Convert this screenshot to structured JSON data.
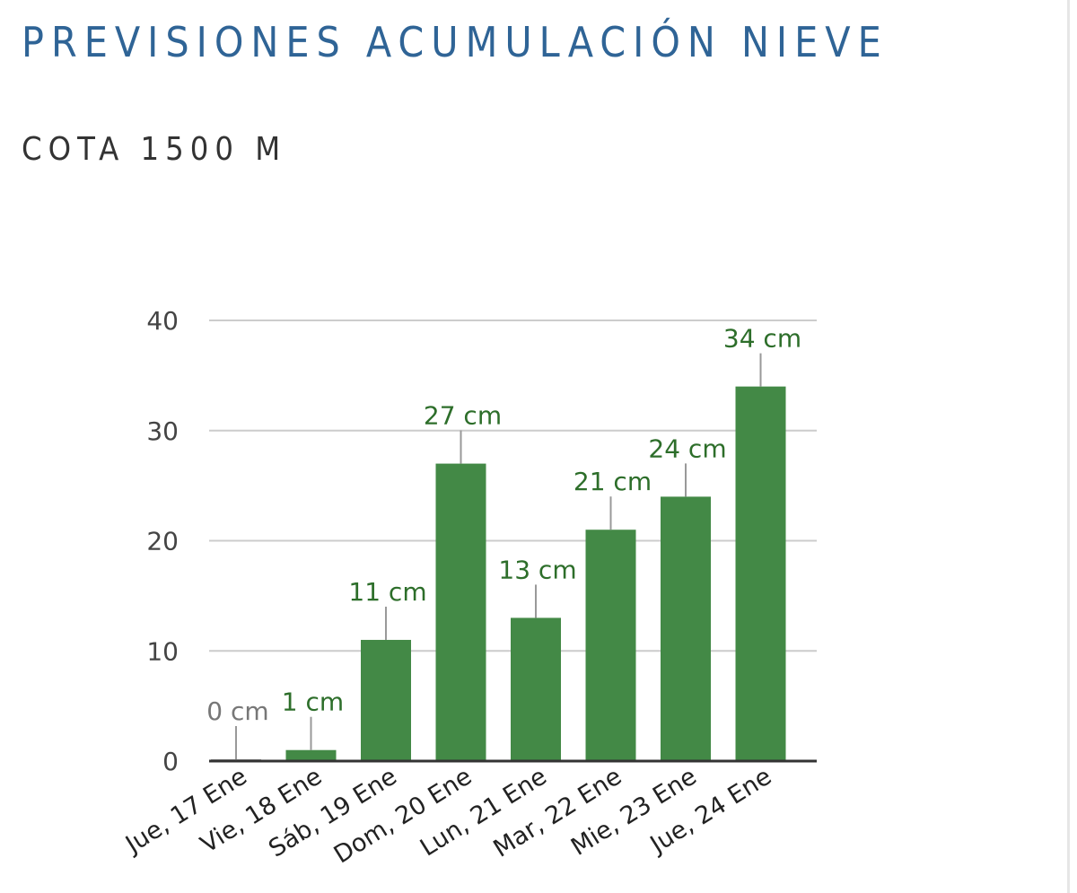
{
  "header": {
    "title": "PREVISIONES ACUMULACIÓN NIEVE",
    "subtitle": "COTA 1500 M"
  },
  "colors": {
    "title": "#2f6496",
    "bar": "#438946",
    "label_green": "#2d6e2a",
    "label_zero": "#777777",
    "grid": "#cccccc",
    "axis": "#333333"
  },
  "chart_data": {
    "type": "bar",
    "title": "",
    "xlabel": "",
    "ylabel": "",
    "categories": [
      "Jue, 17 Ene",
      "Vie, 18 Ene",
      "Sáb, 19 Ene",
      "Dom, 20 Ene",
      "Lun, 21 Ene",
      "Mar, 22 Ene",
      "Mie, 23 Ene",
      "Jue, 24 Ene"
    ],
    "values": [
      0,
      1,
      11,
      27,
      13,
      21,
      24,
      34
    ],
    "data_labels": [
      "0 cm",
      "1 cm",
      "11 cm",
      "27 cm",
      "13 cm",
      "21 cm",
      "24 cm",
      "34 cm"
    ],
    "yticks": [
      "0",
      "10",
      "20",
      "30",
      "40"
    ],
    "ylim": [
      0,
      40
    ],
    "grid": true,
    "legend": "none"
  }
}
